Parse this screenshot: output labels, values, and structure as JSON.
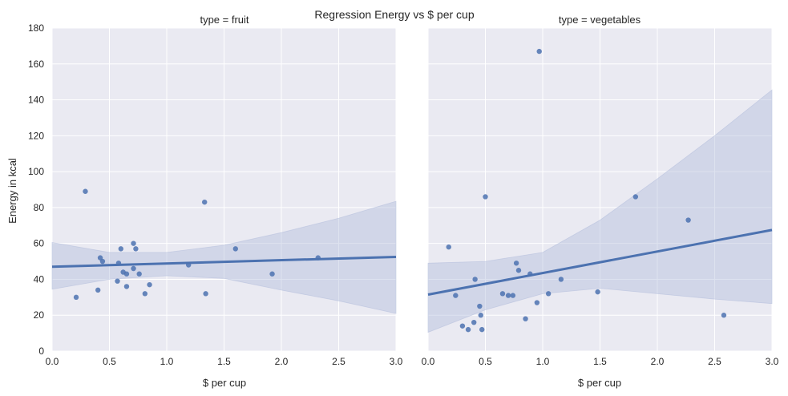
{
  "figure": {
    "title": "Regression Energy vs $ per cup"
  },
  "colors": {
    "panel_bg": "#EAEAF2",
    "grid": "#FFFFFF",
    "points": "#4C72B0",
    "band": "#B4BEDC"
  },
  "chart_data": [
    {
      "type": "scatter",
      "title": "type = fruit",
      "xlabel": "$ per cup",
      "ylabel": "Energy in kcal",
      "xlim": [
        0.0,
        3.0
      ],
      "ylim": [
        0,
        180
      ],
      "xticks": [
        "0.0",
        "0.5",
        "1.0",
        "1.5",
        "2.0",
        "2.5",
        "3.0"
      ],
      "yticks": [
        "0",
        "20",
        "40",
        "60",
        "80",
        "100",
        "120",
        "140",
        "160",
        "180"
      ],
      "grid": true,
      "points": [
        {
          "x": 0.21,
          "y": 30
        },
        {
          "x": 0.29,
          "y": 89
        },
        {
          "x": 0.4,
          "y": 34
        },
        {
          "x": 0.42,
          "y": 52
        },
        {
          "x": 0.44,
          "y": 50
        },
        {
          "x": 0.57,
          "y": 39
        },
        {
          "x": 0.58,
          "y": 49
        },
        {
          "x": 0.6,
          "y": 57
        },
        {
          "x": 0.62,
          "y": 44
        },
        {
          "x": 0.65,
          "y": 43
        },
        {
          "x": 0.65,
          "y": 36
        },
        {
          "x": 0.71,
          "y": 60
        },
        {
          "x": 0.71,
          "y": 46
        },
        {
          "x": 0.73,
          "y": 57
        },
        {
          "x": 0.76,
          "y": 43
        },
        {
          "x": 0.81,
          "y": 32
        },
        {
          "x": 0.85,
          "y": 37
        },
        {
          "x": 1.19,
          "y": 48
        },
        {
          "x": 1.33,
          "y": 83
        },
        {
          "x": 1.34,
          "y": 32
        },
        {
          "x": 1.6,
          "y": 57
        },
        {
          "x": 1.92,
          "y": 43
        },
        {
          "x": 2.32,
          "y": 52
        }
      ],
      "regression": {
        "x": [
          0.0,
          3.0
        ],
        "y": [
          47,
          52.5
        ]
      },
      "ci_band": {
        "x": [
          0.0,
          0.5,
          1.0,
          1.5,
          2.0,
          2.5,
          3.0
        ],
        "upper": [
          60.5,
          55,
          55,
          59,
          66,
          74,
          83.5
        ],
        "lower": [
          34.5,
          40,
          42,
          40.5,
          34,
          28,
          21
        ]
      }
    },
    {
      "type": "scatter",
      "title": "type = vegetables",
      "xlabel": "$ per cup",
      "ylabel": "",
      "xlim": [
        0.0,
        3.0
      ],
      "ylim": [
        0,
        180
      ],
      "xticks": [
        "0.0",
        "0.5",
        "1.0",
        "1.5",
        "2.0",
        "2.5",
        "3.0"
      ],
      "grid": true,
      "points": [
        {
          "x": 0.18,
          "y": 58
        },
        {
          "x": 0.24,
          "y": 31
        },
        {
          "x": 0.3,
          "y": 14
        },
        {
          "x": 0.35,
          "y": 12
        },
        {
          "x": 0.4,
          "y": 16
        },
        {
          "x": 0.41,
          "y": 40
        },
        {
          "x": 0.45,
          "y": 25
        },
        {
          "x": 0.46,
          "y": 20
        },
        {
          "x": 0.47,
          "y": 12
        },
        {
          "x": 0.5,
          "y": 86
        },
        {
          "x": 0.65,
          "y": 32
        },
        {
          "x": 0.7,
          "y": 31
        },
        {
          "x": 0.74,
          "y": 31
        },
        {
          "x": 0.77,
          "y": 49
        },
        {
          "x": 0.79,
          "y": 45
        },
        {
          "x": 0.85,
          "y": 18
        },
        {
          "x": 0.89,
          "y": 43
        },
        {
          "x": 0.95,
          "y": 27
        },
        {
          "x": 0.97,
          "y": 167
        },
        {
          "x": 1.05,
          "y": 32
        },
        {
          "x": 1.16,
          "y": 40
        },
        {
          "x": 1.48,
          "y": 33
        },
        {
          "x": 1.81,
          "y": 86
        },
        {
          "x": 2.27,
          "y": 73
        },
        {
          "x": 2.58,
          "y": 20
        }
      ],
      "regression": {
        "x": [
          0.0,
          3.0
        ],
        "y": [
          31.5,
          67.5
        ]
      },
      "ci_band": {
        "x": [
          0.0,
          0.5,
          1.0,
          1.5,
          2.0,
          2.5,
          3.0
        ],
        "upper": [
          49,
          50,
          55,
          73,
          96,
          120,
          145.5
        ],
        "lower": [
          10.5,
          23,
          32,
          35,
          32,
          29,
          26.5
        ]
      }
    }
  ]
}
